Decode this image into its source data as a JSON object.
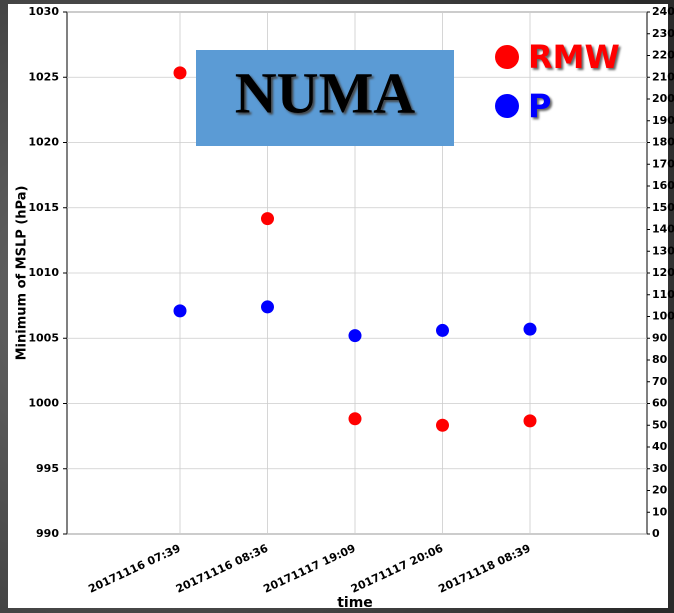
{
  "chart_data": {
    "type": "scatter",
    "annotation": "NUMA",
    "x_label": "time",
    "y_label": "Minimum of MSLP (hPa)",
    "categories": [
      "20171116 07:39",
      "20171116 08:36",
      "20171117 19:09",
      "20171117 20:06",
      "20171118 08:39"
    ],
    "series": [
      {
        "name": "RMW",
        "color": "#ff0000",
        "axis": "y2",
        "values": [
          212,
          145,
          53,
          50,
          52
        ]
      },
      {
        "name": "P",
        "color": "#0000ff",
        "values": [
          1007.1,
          1007.4,
          1005.2,
          1005.6,
          1005.7
        ]
      }
    ],
    "ylim": [
      990,
      1030
    ],
    "yticks": [
      990,
      995,
      1000,
      1005,
      1010,
      1015,
      1020,
      1025,
      1030
    ],
    "y2lim": [
      0,
      240
    ],
    "y2ticks": [
      0,
      10,
      20,
      30,
      40,
      50,
      60,
      70,
      80,
      90,
      100,
      110,
      120,
      130,
      140,
      150,
      160,
      170,
      180,
      190,
      200,
      210,
      220,
      230,
      240
    ],
    "grid": true
  }
}
